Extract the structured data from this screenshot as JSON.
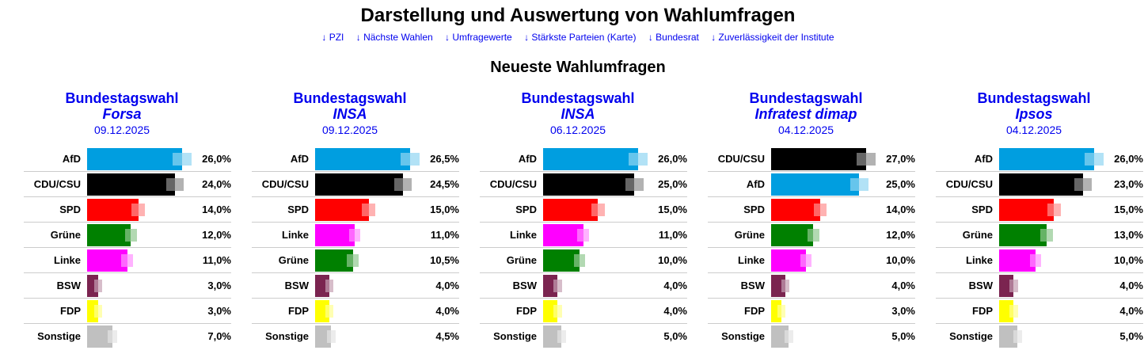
{
  "title": "Darstellung und Auswertung von Wahlumfragen",
  "nav": [
    "↓ PZI",
    "↓ Nächste Wahlen",
    "↓ Umfragewerte",
    "↓ Stärkste Parteien (Karte)",
    "↓ Bundesrat",
    "↓ Zuverlässigkeit der Institute"
  ],
  "subtitle": "Neueste Wahlumfragen",
  "colors": {
    "AfD": "#009ee0",
    "CDU/CSU": "#000000",
    "SPD": "#ff0000",
    "Grüne": "#008000",
    "Linke": "#ff00ff",
    "BSW": "#7b2450",
    "FDP": "#ffff00",
    "Sonstige": "#c0c0c0"
  },
  "polls": [
    {
      "election": "Bundestagswahl",
      "institute": "Forsa",
      "date": "09.12.2025",
      "results": [
        [
          "AfD",
          26.0,
          "26,0%"
        ],
        [
          "CDU/CSU",
          24.0,
          "24,0%"
        ],
        [
          "SPD",
          14.0,
          "14,0%"
        ],
        [
          "Grüne",
          12.0,
          "12,0%"
        ],
        [
          "Linke",
          11.0,
          "11,0%"
        ],
        [
          "BSW",
          3.0,
          "3,0%"
        ],
        [
          "FDP",
          3.0,
          "3,0%"
        ],
        [
          "Sonstige",
          7.0,
          "7,0%"
        ]
      ]
    },
    {
      "election": "Bundestagswahl",
      "institute": "INSA",
      "date": "09.12.2025",
      "results": [
        [
          "AfD",
          26.5,
          "26,5%"
        ],
        [
          "CDU/CSU",
          24.5,
          "24,5%"
        ],
        [
          "SPD",
          15.0,
          "15,0%"
        ],
        [
          "Linke",
          11.0,
          "11,0%"
        ],
        [
          "Grüne",
          10.5,
          "10,5%"
        ],
        [
          "BSW",
          4.0,
          "4,0%"
        ],
        [
          "FDP",
          4.0,
          "4,0%"
        ],
        [
          "Sonstige",
          4.5,
          "4,5%"
        ]
      ]
    },
    {
      "election": "Bundestagswahl",
      "institute": "INSA",
      "date": "06.12.2025",
      "results": [
        [
          "AfD",
          26.0,
          "26,0%"
        ],
        [
          "CDU/CSU",
          25.0,
          "25,0%"
        ],
        [
          "SPD",
          15.0,
          "15,0%"
        ],
        [
          "Linke",
          11.0,
          "11,0%"
        ],
        [
          "Grüne",
          10.0,
          "10,0%"
        ],
        [
          "BSW",
          4.0,
          "4,0%"
        ],
        [
          "FDP",
          4.0,
          "4,0%"
        ],
        [
          "Sonstige",
          5.0,
          "5,0%"
        ]
      ]
    },
    {
      "election": "Bundestagswahl",
      "institute": "Infratest dimap",
      "date": "04.12.2025",
      "results": [
        [
          "CDU/CSU",
          27.0,
          "27,0%"
        ],
        [
          "AfD",
          25.0,
          "25,0%"
        ],
        [
          "SPD",
          14.0,
          "14,0%"
        ],
        [
          "Grüne",
          12.0,
          "12,0%"
        ],
        [
          "Linke",
          10.0,
          "10,0%"
        ],
        [
          "BSW",
          4.0,
          "4,0%"
        ],
        [
          "FDP",
          3.0,
          "3,0%"
        ],
        [
          "Sonstige",
          5.0,
          "5,0%"
        ]
      ]
    },
    {
      "election": "Bundestagswahl",
      "institute": "Ipsos",
      "date": "04.12.2025",
      "results": [
        [
          "AfD",
          26.0,
          "26,0%"
        ],
        [
          "CDU/CSU",
          23.0,
          "23,0%"
        ],
        [
          "SPD",
          15.0,
          "15,0%"
        ],
        [
          "Grüne",
          13.0,
          "13,0%"
        ],
        [
          "Linke",
          10.0,
          "10,0%"
        ],
        [
          "BSW",
          4.0,
          "4,0%"
        ],
        [
          "FDP",
          4.0,
          "4,0%"
        ],
        [
          "Sonstige",
          5.0,
          "5,0%"
        ]
      ]
    }
  ]
}
